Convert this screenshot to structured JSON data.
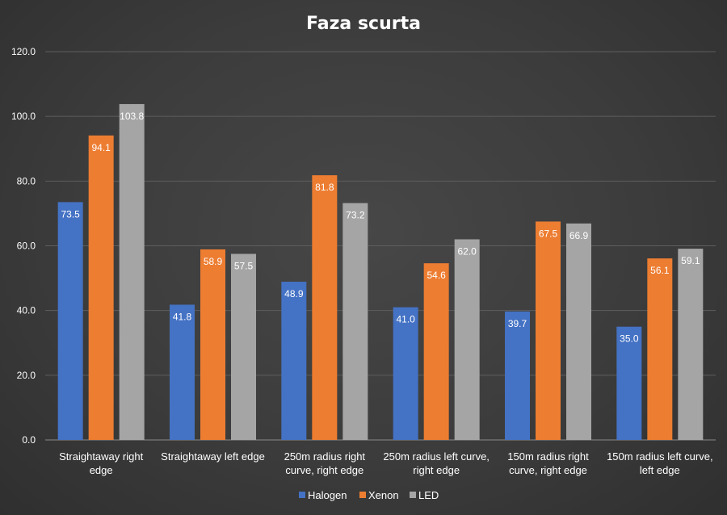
{
  "chart_data": {
    "type": "bar",
    "title": "Faza scurta",
    "xlabel": "",
    "ylabel": "",
    "ylim": [
      0,
      120
    ],
    "yticks": [
      "0.0",
      "20.0",
      "40.0",
      "60.0",
      "80.0",
      "100.0",
      "120.0"
    ],
    "grid": true,
    "legend_position": "bottom",
    "categories": [
      [
        "Straightaway right",
        "edge"
      ],
      [
        "Straightaway left edge"
      ],
      [
        "250m radius right",
        "curve, right edge"
      ],
      [
        "250m radius left curve,",
        "right edge"
      ],
      [
        "150m radius right",
        "curve, right edge"
      ],
      [
        "150m radius left curve,",
        "left edge"
      ]
    ],
    "series": [
      {
        "name": "Halogen",
        "color": "#4472C4",
        "values": [
          73.5,
          41.8,
          48.9,
          41.0,
          39.7,
          35.0
        ]
      },
      {
        "name": "Xenon",
        "color": "#ED7D31",
        "values": [
          94.1,
          58.9,
          81.8,
          54.6,
          67.5,
          56.1
        ]
      },
      {
        "name": "LED",
        "color": "#A5A5A5",
        "values": [
          103.8,
          57.5,
          73.2,
          62.0,
          66.9,
          59.1
        ]
      }
    ]
  }
}
